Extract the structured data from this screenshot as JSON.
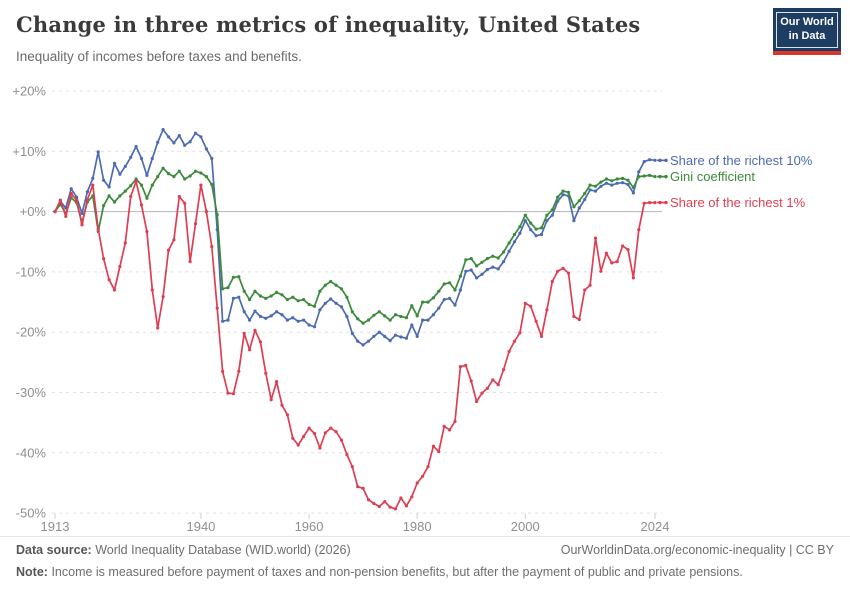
{
  "header": {
    "title": "Change in three metrics of inequality, United States",
    "subtitle": "Inequality of incomes before taxes and benefits."
  },
  "logo": {
    "line1": "Our World",
    "line2": "in Data",
    "bg_color": "#1D3D63",
    "accent_color": "#DC352B"
  },
  "chart_data": {
    "type": "line",
    "title": "Change in three metrics of inequality, United States",
    "subtitle": "Inequality of incomes before taxes and benefits.",
    "xlabel": "",
    "ylabel": "",
    "ylim": [
      -50,
      20
    ],
    "xlim": [
      1913,
      2024
    ],
    "grid": true,
    "legend_position": "right",
    "year_start": 1913,
    "year_end": 2024,
    "yticks": [
      {
        "value": 20,
        "label": "+20%"
      },
      {
        "value": 10,
        "label": "+10%"
      },
      {
        "value": 0,
        "label": "+0%"
      },
      {
        "value": -10,
        "label": "-10%"
      },
      {
        "value": -20,
        "label": "-20%"
      },
      {
        "value": -30,
        "label": "-30%"
      },
      {
        "value": -40,
        "label": "-40%"
      },
      {
        "value": -50,
        "label": "-50%"
      }
    ],
    "xticks": [
      {
        "year": 1913,
        "label": "1913"
      },
      {
        "year": 1940,
        "label": "1940"
      },
      {
        "year": 1960,
        "label": "1960"
      },
      {
        "year": 1980,
        "label": "1980"
      },
      {
        "year": 2000,
        "label": "2000"
      },
      {
        "year": 2024,
        "label": "2024"
      }
    ],
    "series": [
      {
        "id": "share-richest-10",
        "label": "Share of the richest 10%",
        "color": "#4C6BB0",
        "values": [
          0,
          1.7,
          0.6,
          3.8,
          2.4,
          -0.3,
          3.3,
          5.5,
          9.9,
          5.2,
          4.1,
          8,
          6.2,
          7.5,
          9,
          10.8,
          8.8,
          6,
          8.8,
          11.5,
          13.6,
          12.4,
          11.4,
          12.6,
          11,
          11.6,
          13,
          12.4,
          10.4,
          8.8,
          -3,
          -18.2,
          -18,
          -14.4,
          -14.2,
          -16.6,
          -18,
          -16.5,
          -17.4,
          -17.7,
          -17.3,
          -16.6,
          -17.1,
          -18,
          -17.6,
          -18.2,
          -18,
          -18.8,
          -19.1,
          -16.3,
          -15.2,
          -14.5,
          -15.2,
          -15.8,
          -17.4,
          -20.2,
          -21.5,
          -22.1,
          -21.5,
          -20.7,
          -20,
          -20.7,
          -21.4,
          -20.5,
          -20.8,
          -21,
          -18.8,
          -20.7,
          -18,
          -18,
          -17.1,
          -16,
          -14.6,
          -14.4,
          -15.5,
          -13,
          -9.9,
          -9.7,
          -11,
          -10.4,
          -9.6,
          -9.2,
          -9.5,
          -8.3,
          -6.6,
          -5,
          -3.6,
          -1.5,
          -3,
          -4,
          -3.8,
          -1.5,
          -0.6,
          1.7,
          2.8,
          2.6,
          -1.5,
          0.6,
          2,
          3.6,
          3.4,
          4.2,
          4.7,
          4.4,
          4.7,
          4.8,
          4.5,
          3.1,
          6.6,
          8.3,
          8.6,
          8.5
        ]
      },
      {
        "id": "gini-coefficient",
        "label": "Gini coefficient",
        "color": "#3C8A3C",
        "values": [
          0,
          1.2,
          -0.3,
          2.3,
          1.5,
          -1.8,
          1.6,
          2.6,
          -3.3,
          1.0,
          2.6,
          1.6,
          2.6,
          3.4,
          4.3,
          5.4,
          4.4,
          2.2,
          4.4,
          5.8,
          7.2,
          6.3,
          5.8,
          6.7,
          5.4,
          5.9,
          6.7,
          6.4,
          5.8,
          4.5,
          -0.5,
          -12.8,
          -12.6,
          -10.9,
          -10.8,
          -13.2,
          -14.6,
          -13.2,
          -14.0,
          -14.4,
          -14.0,
          -13.4,
          -13.8,
          -14.6,
          -14.2,
          -14.8,
          -14.6,
          -15.4,
          -15.7,
          -13.2,
          -12.2,
          -11.6,
          -12.2,
          -12.8,
          -14.2,
          -16.6,
          -17.8,
          -18.5,
          -18.0,
          -17.2,
          -16.6,
          -17.3,
          -18.0,
          -17.1,
          -17.4,
          -17.6,
          -15.6,
          -17.3,
          -15.0,
          -15.0,
          -14.3,
          -13.2,
          -12.0,
          -11.8,
          -13.0,
          -10.7,
          -8.0,
          -7.8,
          -9.0,
          -8.4,
          -7.8,
          -7.4,
          -7.7,
          -6.7,
          -5.2,
          -3.8,
          -2.5,
          -0.6,
          -1.9,
          -2.9,
          -2.7,
          -0.6,
          0.3,
          2.4,
          3.4,
          3.2,
          0.8,
          1.8,
          3.0,
          4.4,
          4.2,
          4.9,
          5.4,
          5.1,
          5.4,
          5.5,
          5.2,
          4.0,
          5.8,
          5.9,
          6.0,
          5.8
        ]
      },
      {
        "id": "share-richest-1",
        "label": "Share of the richest 1%",
        "color": "#DF3E52",
        "values": [
          0,
          1.9,
          -0.8,
          3.0,
          1.9,
          -2.2,
          2.0,
          4.4,
          -2.9,
          -7.8,
          -11.3,
          -13.0,
          -9.1,
          -5.2,
          2.5,
          5.0,
          1.1,
          -3.3,
          -13.0,
          -19.3,
          -14.1,
          -6.4,
          -4.7,
          2.5,
          1.4,
          -8.3,
          -2.0,
          4.4,
          0.0,
          -5.8,
          -16.0,
          -26.5,
          -30.1,
          -30.2,
          -26.5,
          -20.2,
          -22.9,
          -19.7,
          -21.6,
          -26.8,
          -31.2,
          -28.2,
          -32.1,
          -33.7,
          -37.6,
          -38.7,
          -37.3,
          -35.9,
          -36.8,
          -39.2,
          -36.7,
          -35.9,
          -36.5,
          -37.9,
          -40.3,
          -42.3,
          -45.6,
          -45.9,
          -47.8,
          -48.4,
          -48.9,
          -48.1,
          -49.0,
          -49.3,
          -47.5,
          -48.8,
          -47.3,
          -45.0,
          -43.9,
          -42.3,
          -38.9,
          -39.8,
          -35.6,
          -36.2,
          -34.8,
          -25.7,
          -25.5,
          -28.1,
          -31.5,
          -30.1,
          -29.3,
          -27.9,
          -28.7,
          -26.2,
          -23.2,
          -21.5,
          -20.1,
          -15.2,
          -15.7,
          -18.2,
          -20.7,
          -16.3,
          -11.6,
          -9.9,
          -9.4,
          -10.2,
          -17.4,
          -17.9,
          -13.0,
          -12.2,
          -4.4,
          -9.9,
          -6.9,
          -8.5,
          -8.3,
          -5.7,
          -6.3,
          -11.0,
          -3.0,
          1.4,
          1.5,
          1.5
        ]
      }
    ],
    "style": {
      "gridline_color": "#e0e0e0",
      "zero_line_color": "#b3b3b3",
      "tick_label_color": "#8f8f8f"
    }
  },
  "footer": {
    "source_label": "Data source:",
    "source_text": "World Inequality Database (WID.world) (2026)",
    "link_text": "OurWorldinData.org/economic-inequality | CC BY",
    "note_label": "Note:",
    "note_text": "Income is measured before payment of taxes and non-pension benefits, but after the payment of public and private pensions."
  }
}
